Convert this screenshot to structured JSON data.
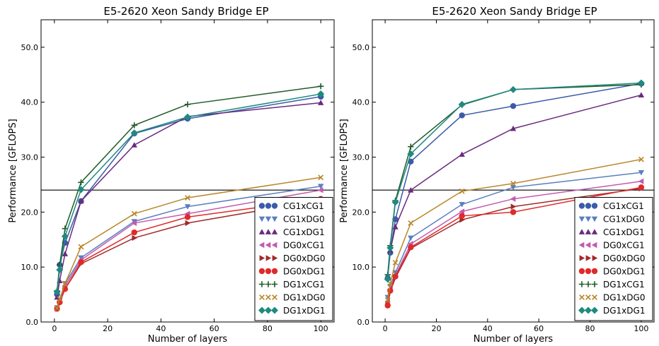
{
  "figure": {
    "description_hint": ""
  },
  "colors": {
    "CG1xCG1": "#3b5ba8",
    "CG1xDG0": "#5a7fc0",
    "CG1xDG1": "#6b2a7e",
    "DG0xCG1": "#c45aaf",
    "DG0xDG0": "#a02a2a",
    "DG0xDG1": "#e02a2a",
    "DG1xCG1": "#1f5a2a",
    "DG1xDG0": "#b8862a",
    "DG1xDG1": "#1f8a80"
  },
  "chart_data": [
    {
      "type": "line",
      "title": "E5-2620 Xeon Sandy Bridge EP",
      "xlabel": "Number of layers",
      "ylabel": "Performance [GFLOPS]",
      "xlim": [
        -5,
        105
      ],
      "ylim": [
        0,
        55
      ],
      "xticks": [
        "0",
        "20",
        "40",
        "60",
        "80",
        "100"
      ],
      "yticks": [
        "0.0",
        "10.0",
        "20.0",
        "30.0",
        "40.0",
        "50.0"
      ],
      "reference_line_y": 24.0,
      "legend_position": "lower-right",
      "x": [
        1,
        2,
        4,
        10,
        30,
        50,
        100
      ],
      "series": [
        {
          "name": "CG1xCG1",
          "marker": "circle",
          "values": [
            5.0,
            10.4,
            14.4,
            22.0,
            34.3,
            37.0,
            41.0
          ]
        },
        {
          "name": "CG1xDG0",
          "marker": "triangle-down",
          "values": [
            2.6,
            4.0,
            7.0,
            11.7,
            18.3,
            21.0,
            24.7
          ]
        },
        {
          "name": "CG1xDG1",
          "marker": "triangle-up",
          "values": [
            4.5,
            7.5,
            12.4,
            22.0,
            32.2,
            37.4,
            39.9
          ]
        },
        {
          "name": "DG0xCG1",
          "marker": "triangle-left",
          "values": [
            2.5,
            3.8,
            6.5,
            11.3,
            18.0,
            19.7,
            24.0
          ]
        },
        {
          "name": "DG0xDG0",
          "marker": "triangle-right",
          "values": [
            2.4,
            3.5,
            6.0,
            10.6,
            15.3,
            18.0,
            22.2
          ]
        },
        {
          "name": "DG0xDG1",
          "marker": "circle",
          "values": [
            2.4,
            3.6,
            6.0,
            10.9,
            16.3,
            19.1,
            22.4
          ]
        },
        {
          "name": "DG1xCG1",
          "marker": "plus",
          "values": [
            5.7,
            10.4,
            17.0,
            25.4,
            35.8,
            39.6,
            42.9
          ]
        },
        {
          "name": "DG1xDG0",
          "marker": "x",
          "values": [
            2.5,
            4.2,
            7.0,
            13.7,
            19.7,
            22.6,
            26.3
          ]
        },
        {
          "name": "DG1xDG1",
          "marker": "diamond",
          "values": [
            5.5,
            9.5,
            15.6,
            24.1,
            34.4,
            37.3,
            41.5
          ]
        }
      ]
    },
    {
      "type": "line",
      "title": "E5-2620 Xeon Sandy Bridge EP",
      "xlabel": "Number of layers",
      "ylabel": "Performance [GFLOPS]",
      "xlim": [
        -5,
        105
      ],
      "ylim": [
        0,
        55
      ],
      "xticks": [
        "0",
        "20",
        "40",
        "60",
        "80",
        "100"
      ],
      "yticks": [
        "0.0",
        "10.0",
        "20.0",
        "30.0",
        "40.0",
        "50.0"
      ],
      "reference_line_y": 24.0,
      "legend_position": "lower-right",
      "x": [
        1,
        2,
        4,
        10,
        30,
        50,
        100
      ],
      "series": [
        {
          "name": "CG1xCG1",
          "marker": "circle",
          "values": [
            8.0,
            12.6,
            18.7,
            29.2,
            37.6,
            39.3,
            43.4
          ]
        },
        {
          "name": "CG1xDG0",
          "marker": "triangle-down",
          "values": [
            4.5,
            6.5,
            9.0,
            15.3,
            21.4,
            24.5,
            27.2
          ]
        },
        {
          "name": "CG1xDG1",
          "marker": "triangle-up",
          "values": [
            8.0,
            13.0,
            17.3,
            24.0,
            30.5,
            35.2,
            41.3
          ]
        },
        {
          "name": "DG0xCG1",
          "marker": "triangle-left",
          "values": [
            3.8,
            6.0,
            8.5,
            14.2,
            20.1,
            22.4,
            25.6
          ]
        },
        {
          "name": "DG0xDG0",
          "marker": "triangle-right",
          "values": [
            3.2,
            5.5,
            8.0,
            13.4,
            18.6,
            21.0,
            24.3
          ]
        },
        {
          "name": "DG0xDG1",
          "marker": "circle",
          "values": [
            3.0,
            5.7,
            8.3,
            13.6,
            19.3,
            20.0,
            24.5
          ]
        },
        {
          "name": "DG1xCG1",
          "marker": "plus",
          "values": [
            8.6,
            13.9,
            22.1,
            31.9,
            39.5,
            42.3,
            43.2
          ]
        },
        {
          "name": "DG1xDG0",
          "marker": "x",
          "values": [
            4.0,
            7.0,
            10.8,
            18.0,
            23.8,
            25.2,
            29.6
          ]
        },
        {
          "name": "DG1xDG1",
          "marker": "diamond",
          "values": [
            7.8,
            13.5,
            21.8,
            30.6,
            39.6,
            42.3,
            43.5
          ]
        }
      ]
    }
  ]
}
